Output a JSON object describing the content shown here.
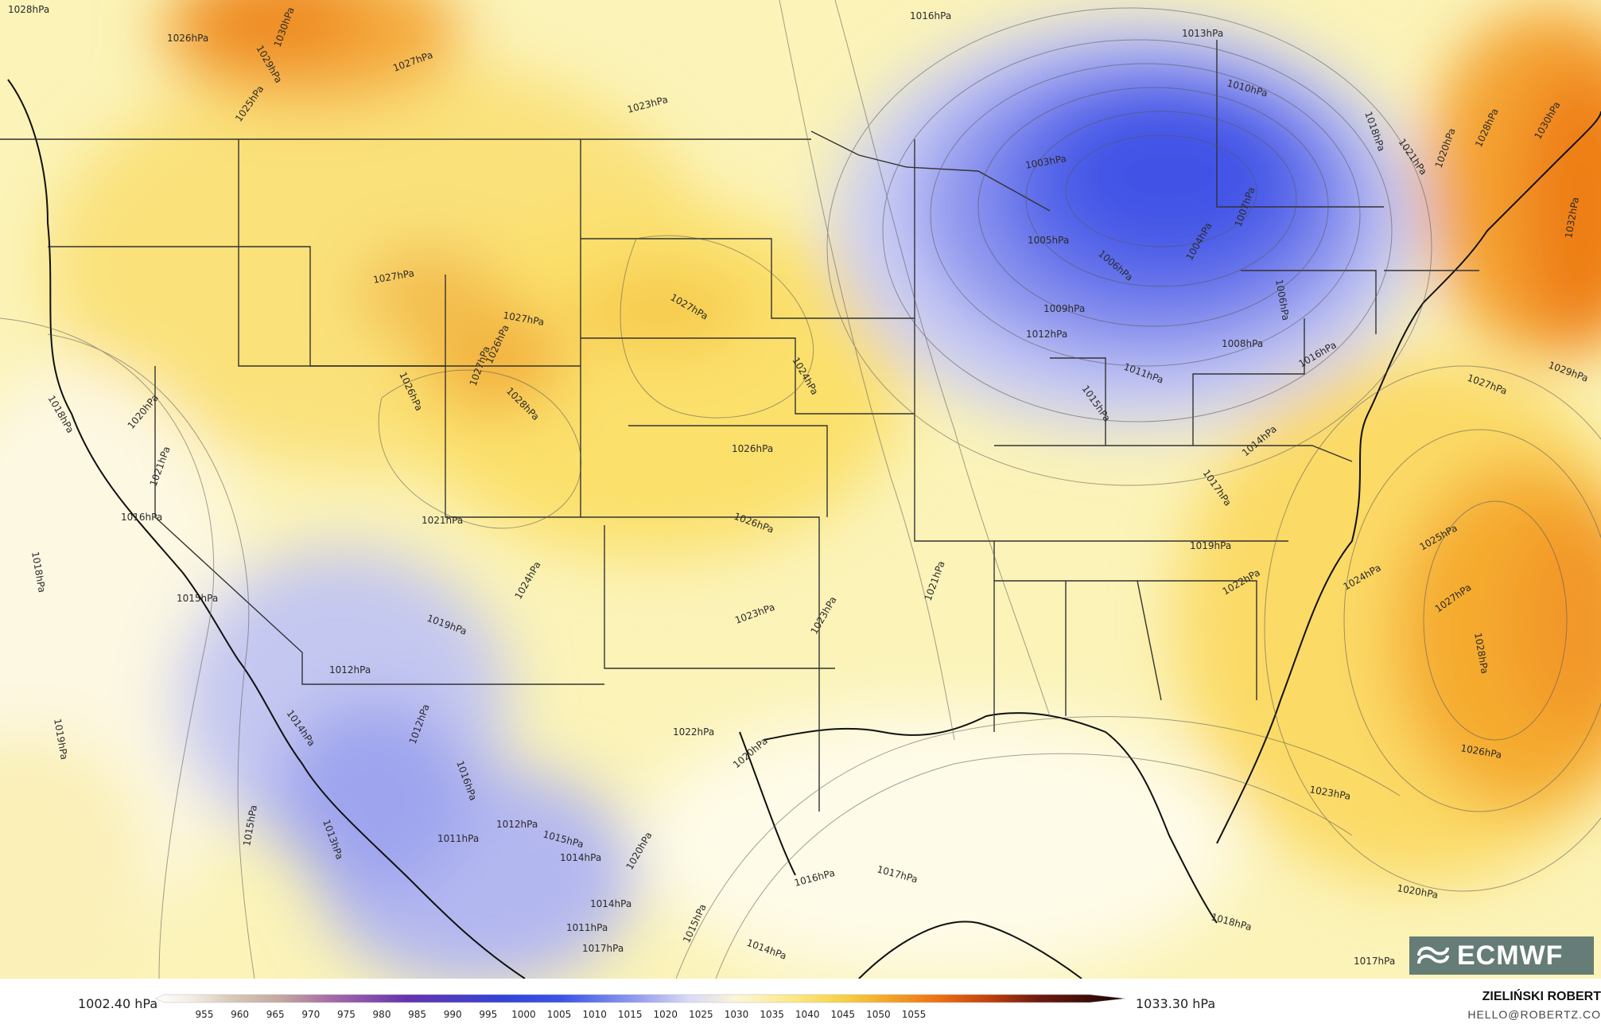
{
  "map": {
    "isobar_labels": [
      "1028hPa",
      "1026hPa",
      "1029hPa",
      "1030hPa",
      "1027hPa",
      "1025hPa",
      "1023hPa",
      "1016hPa",
      "1013hPa",
      "1010hPa",
      "1018hPa",
      "1021hPa",
      "1020hPa",
      "1028hPa",
      "1030hPa",
      "1032hPa",
      "1003hPa",
      "1005hPa",
      "1004hPa",
      "1007hPa",
      "1006hPa",
      "1006hPa",
      "1009hPa",
      "1012hPa",
      "1011hPa",
      "1008hPa",
      "1016hPa",
      "1015hPa",
      "1014hPa",
      "1017hPa",
      "1027hPa",
      "1029hPa",
      "1027hPa",
      "1027hPa",
      "1027hPa",
      "1026hPa",
      "1027hPa",
      "1028hPa",
      "1026hPa",
      "1024hPa",
      "1018hPa",
      "1020hPa",
      "1021hPa",
      "1016hPa",
      "1018hPa",
      "1021hPa",
      "1026hPa",
      "1026hPa",
      "1019hPa",
      "1025hPa",
      "1022hPa",
      "1024hPa",
      "1027hPa",
      "1028hPa",
      "1015hPa",
      "1019hPa",
      "1024hPa",
      "1023hPa",
      "1023hPa",
      "1021hPa",
      "1012hPa",
      "1012hPa",
      "1014hPa",
      "1016hPa",
      "1019hPa",
      "1022hPa",
      "1020hPa",
      "1026hPa",
      "1023hPa",
      "1013hPa",
      "1015hPa",
      "1011hPa",
      "1012hPa",
      "1015hPa",
      "1014hPa",
      "1020hPa",
      "1015hPa",
      "1017hPa",
      "1016hPa",
      "1018hPa",
      "1020hPa",
      "1014hPa",
      "1017hPa",
      "1011hPa",
      "1014hPa",
      "1017hPa"
    ],
    "colors": {
      "low_deep": "#3a4fe8",
      "low_mid": "#8f97ee",
      "low_light": "#d9dcf8",
      "neutral": "#fdf9e0",
      "high_light": "#fcef9a",
      "high_mid": "#f8cf45",
      "high_strong": "#f39b1d",
      "high_peak": "#ef7d16"
    }
  },
  "legend": {
    "min_value": "1002.40 hPa",
    "max_value": "1033.30 hPa",
    "ticks": [
      "955",
      "960",
      "965",
      "970",
      "975",
      "980",
      "985",
      "990",
      "995",
      "1000",
      "1005",
      "1010",
      "1015",
      "1020",
      "1025",
      "1030",
      "1035",
      "1040",
      "1045",
      "1050",
      "1055"
    ]
  },
  "author": {
    "name": "ZIELIŃSKI ROBERT",
    "email": "HELLO@ROBERTZ.CO"
  },
  "logo": {
    "text": "ECMWF"
  }
}
